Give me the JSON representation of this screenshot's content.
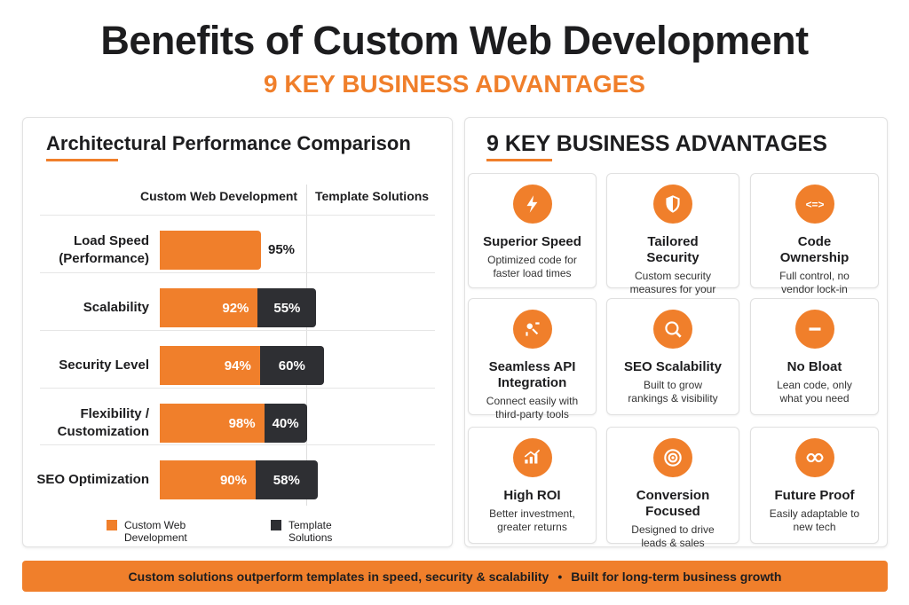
{
  "header": {
    "title": "Benefits of Custom Web Development",
    "subtitle": "9 KEY BUSINESS ADVANTAGES"
  },
  "chart_data": {
    "type": "bar",
    "orientation": "horizontal",
    "stacked": true,
    "title": "Architectural Performance Comparison",
    "categories": [
      "Load Speed (Performance)",
      "Scalability",
      "Security Level",
      "Flexibility / Customization",
      "SEO Optimization"
    ],
    "series": [
      {
        "name": "Custom Web Development",
        "color": "#f07f2b",
        "values": [
          95,
          92,
          94,
          98,
          90
        ],
        "value_labels": [
          "95%",
          "92%",
          "94%",
          "98%",
          "90%"
        ]
      },
      {
        "name": "Template Solutions",
        "color": "#2e2f33",
        "values": [
          null,
          55,
          60,
          40,
          58
        ],
        "value_labels": [
          null,
          "55%",
          "60%",
          "40%",
          "58%"
        ]
      }
    ]
  },
  "advantages": {
    "title": "9 KEY BUSINESS ADVANTAGES",
    "items": [
      {
        "title": "Superior Speed",
        "text": "Optimized code for faster load times"
      },
      {
        "title": "Tailored Security",
        "text": "Custom security measures for your business"
      },
      {
        "title": "Code Ownership",
        "text": "Full control, no vendor lock-in"
      },
      {
        "title": "Seamless API Integration",
        "text": "Connect easily with third-party tools"
      },
      {
        "title": "SEO Scalability",
        "text": "Built to grow rankings & visibility"
      },
      {
        "title": "No Bloat",
        "text": "Lean code, only what you need"
      },
      {
        "title": "High ROI",
        "text": "Better investment, greater returns"
      },
      {
        "title": "Conversion Focused",
        "text": "Designed to drive leads & sales"
      },
      {
        "title": "Future Proof",
        "text": "Easily adaptable to new tech"
      }
    ]
  },
  "footer": [
    "Custom solutions outperform templates in speed, security & scalability",
    "Built for long-term business growth"
  ]
}
